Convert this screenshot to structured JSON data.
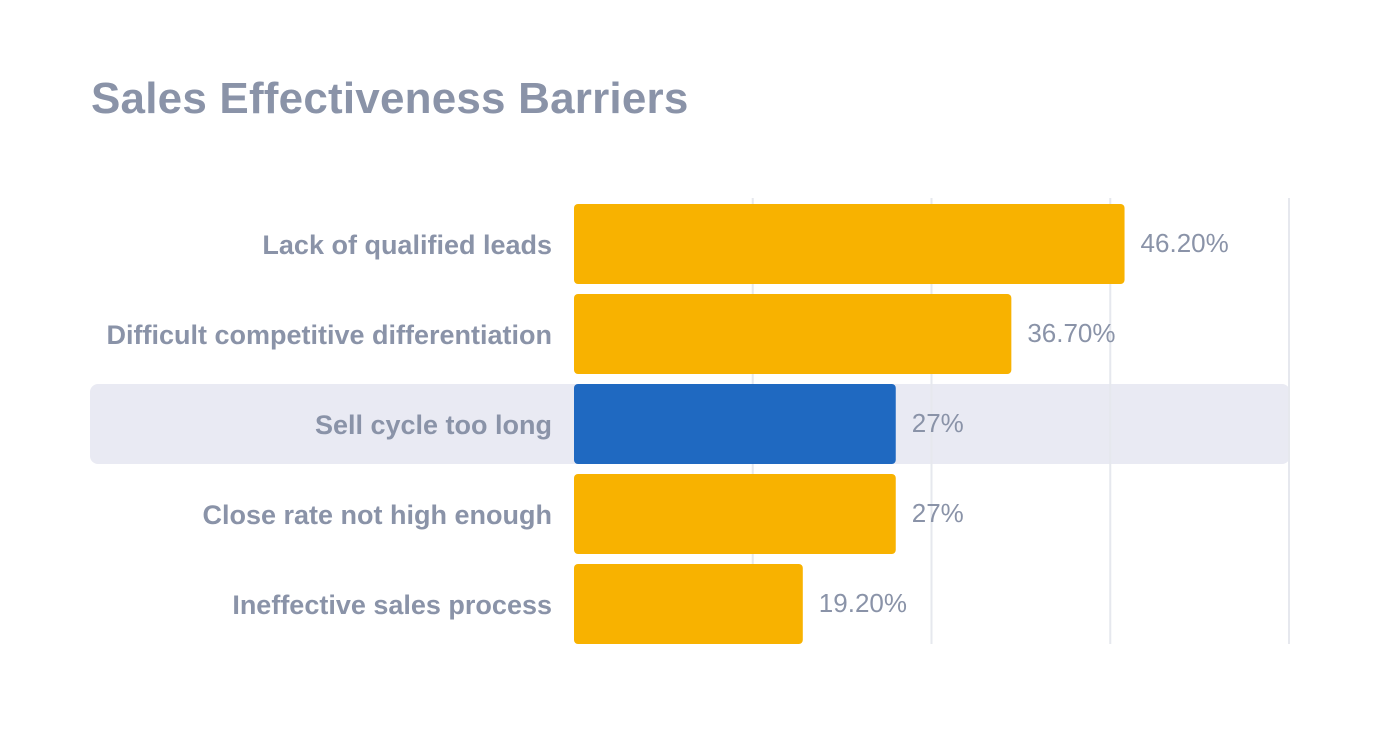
{
  "colors": {
    "bar": "#f8b200",
    "highlight_bar": "#1f69c1",
    "highlight_row": "#e9eaf3",
    "grid": "#e6e8ee",
    "text": "#8a93a8"
  },
  "chart_data": {
    "type": "bar",
    "orientation": "horizontal",
    "title": "Sales Effectiveness Barriers",
    "xlabel": "",
    "ylabel": "",
    "xlim": [
      0,
      60
    ],
    "grid": true,
    "categories": [
      "Lack of qualified leads",
      "Difficult competitive differentiation",
      "Sell cycle too long",
      "Close rate not high enough",
      "Ineffective sales process"
    ],
    "values": [
      46.2,
      36.7,
      27,
      27,
      19.2
    ],
    "data_labels": [
      "46.20%",
      "36.70%",
      "27%",
      "27%",
      "19.20%"
    ],
    "highlighted_category": "Sell cycle too long"
  }
}
